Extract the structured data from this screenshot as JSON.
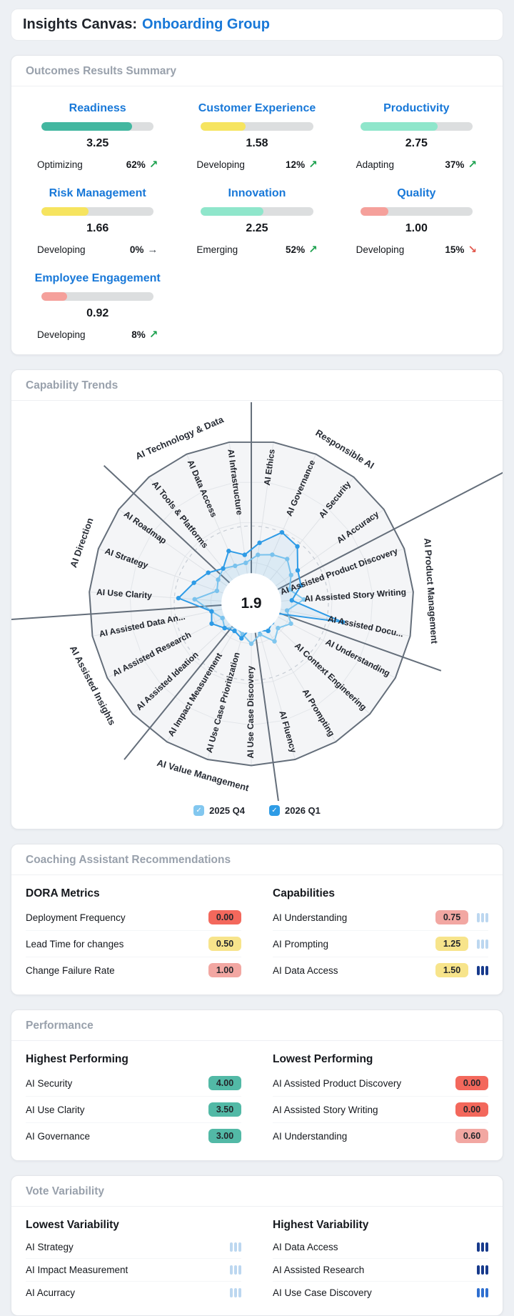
{
  "header": {
    "title_prefix": "Insights Canvas:",
    "group_name": "Onboarding Group"
  },
  "outcomes": {
    "section_title": "Outcomes Results Summary",
    "metrics": [
      {
        "name": "Readiness",
        "value": "3.25",
        "bar_width": "81%",
        "bar_color": "#43b7a0",
        "status": "Optimizing",
        "change": "62%",
        "trend": "up",
        "trend_glyph": "↗"
      },
      {
        "name": "Customer Experience",
        "value": "1.58",
        "bar_width": "40%",
        "bar_color": "#f6e45f",
        "status": "Developing",
        "change": "12%",
        "trend": "up",
        "trend_glyph": "↗"
      },
      {
        "name": "Productivity",
        "value": "2.75",
        "bar_width": "69%",
        "bar_color": "#8fe6cb",
        "status": "Adapting",
        "change": "37%",
        "trend": "up",
        "trend_glyph": "↗"
      },
      {
        "name": "Risk Management",
        "value": "1.66",
        "bar_width": "42%",
        "bar_color": "#f6e45f",
        "status": "Developing",
        "change": "0%",
        "trend": "flat",
        "trend_glyph": "→"
      },
      {
        "name": "Innovation",
        "value": "2.25",
        "bar_width": "56%",
        "bar_color": "#8fe6cb",
        "status": "Emerging",
        "change": "52%",
        "trend": "up",
        "trend_glyph": "↗"
      },
      {
        "name": "Quality",
        "value": "1.00",
        "bar_width": "25%",
        "bar_color": "#f5a09b",
        "status": "Developing",
        "change": "15%",
        "trend": "down",
        "trend_glyph": "↘"
      },
      {
        "name": "Employee Engagement",
        "value": "0.92",
        "bar_width": "23%",
        "bar_color": "#f5a09b",
        "status": "Developing",
        "change": "8%",
        "trend": "up",
        "trend_glyph": "↗"
      }
    ]
  },
  "trends": {
    "section_title": "Capability Trends",
    "check_glyph": "✓",
    "legend": [
      {
        "label": "2025 Q4",
        "color": "#82c7ef"
      },
      {
        "label": "2026 Q1",
        "color": "#2e9ce6"
      }
    ]
  },
  "chart_data": {
    "type": "radar",
    "max": 4,
    "center_value": "1.9",
    "dashed_ring_value": 1.9,
    "axes": [
      "AI Ethics",
      "AI Governance",
      "AI Security",
      "AI Accuracy",
      "AI Assisted Product Discovery",
      "AI Assisted Story Writing",
      "AI Assisted Docu...",
      "AI Understanding",
      "AI Context Engineering",
      "AI Prompting",
      "AI Fluency",
      "AI Use Case Discovery",
      "AI Use Case Prioritization",
      "AI Impact Measurement",
      "AI Assisted Ideation",
      "AI Assisted Research",
      "AI Assisted Data An...",
      "AI Use Clarity",
      "AI Strategy",
      "AI Roadmap",
      "AI Tools & Platforms",
      "AI Data Access",
      "AI Infrastructure"
    ],
    "groups": [
      {
        "name": "Responsible AI",
        "deg": 31.3
      },
      {
        "name": "AI Product Management",
        "deg": 86.1
      },
      {
        "name": "AI Value Management",
        "deg": 195.7
      },
      {
        "name": "AI Assisted Insights",
        "deg": 242.6
      },
      {
        "name": "AI Direction",
        "deg": 289.6
      },
      {
        "name": "AI Technology & Data",
        "deg": 336.5
      }
    ],
    "group_boundaries": [
      {
        "deg": 0
      },
      {
        "deg": 62.6,
        "extend": "edge"
      },
      {
        "deg": 109.6
      },
      {
        "deg": 172.2
      },
      {
        "deg": 219.1
      },
      {
        "deg": 266.1,
        "extend": "edge"
      },
      {
        "deg": 313.0
      }
    ],
    "series": [
      {
        "name": "2025 Q4",
        "color": "#7fc6ee",
        "values": [
          1.2,
          1.3,
          1.4,
          1.2,
          1.0,
          1.3,
          0.9,
          1.1,
          0.9,
          1.1,
          0.8,
          1.0,
          0.8,
          0.7,
          0.9,
          0.8,
          1.0,
          1.4,
          0.9,
          1.0,
          1.1,
          1.0,
          1.0
        ]
      },
      {
        "name": "2026 Q1",
        "color": "#2e9be6",
        "values": [
          1.5,
          1.9,
          1.8,
          1.4,
          1.3,
          1.0,
          2.3,
          0.5,
          0.7,
          0.8,
          0.7,
          0.6,
          0.9,
          0.8,
          0.9,
          1.1,
          1.0,
          1.8,
          1.5,
          1.3,
          1.1,
          1.4,
          1.2
        ]
      }
    ]
  },
  "coaching": {
    "section_title": "Coaching Assistant Recommendations",
    "dora": {
      "title": "DORA Metrics",
      "rows": [
        {
          "label": "Deployment Frequency",
          "value": "0.00",
          "badge": "red"
        },
        {
          "label": "Lead Time for changes",
          "value": "0.50",
          "badge": "yellow"
        },
        {
          "label": "Change Failure Rate",
          "value": "1.00",
          "badge": "pink"
        }
      ]
    },
    "capabilities": {
      "title": "Capabilities",
      "rows": [
        {
          "label": "AI Understanding",
          "value": "0.75",
          "badge": "pink",
          "votes_color": "#bcd7f0"
        },
        {
          "label": "AI Prompting",
          "value": "1.25",
          "badge": "yellow",
          "votes_color": "#bcd7f0"
        },
        {
          "label": "AI Data Access",
          "value": "1.50",
          "badge": "yellow",
          "votes_color": "#173a8c"
        }
      ]
    }
  },
  "performance": {
    "section_title": "Performance",
    "highest": {
      "title": "Highest Performing",
      "rows": [
        {
          "label": "AI Security",
          "value": "4.00",
          "badge": "teal"
        },
        {
          "label": "AI Use Clarity",
          "value": "3.50",
          "badge": "teal"
        },
        {
          "label": "AI Governance",
          "value": "3.00",
          "badge": "teal"
        }
      ]
    },
    "lowest": {
      "title": "Lowest Performing",
      "rows": [
        {
          "label": "AI Assisted Product Discovery",
          "value": "0.00",
          "badge": "red"
        },
        {
          "label": "AI Assisted Story Writing",
          "value": "0.00",
          "badge": "red"
        },
        {
          "label": "AI Understanding",
          "value": "0.60",
          "badge": "pink"
        }
      ]
    }
  },
  "variability": {
    "section_title": "Vote Variability",
    "lowest": {
      "title": "Lowest Variability",
      "rows": [
        {
          "label": "AI Strategy",
          "votes_color": "#bcd7f0"
        },
        {
          "label": "AI Impact Measurement",
          "votes_color": "#bcd7f0"
        },
        {
          "label": "AI Acurracy",
          "votes_color": "#bcd7f0"
        }
      ]
    },
    "highest": {
      "title": "Highest Variability",
      "rows": [
        {
          "label": "AI Data Access",
          "votes_color": "#173a8c"
        },
        {
          "label": "AI Assisted Research",
          "votes_color": "#173a8c"
        },
        {
          "label": "AI Use Case Discovery",
          "votes_color": "#2f6fd0"
        }
      ]
    }
  }
}
